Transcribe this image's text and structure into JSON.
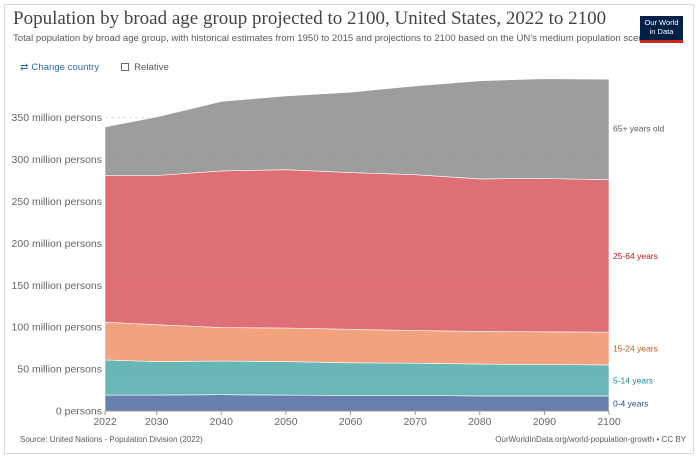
{
  "header": {
    "title": "Population by broad age group projected to 2100, United States, 2022 to 2100",
    "subtitle": "Total population by broad age group, with historical estimates from 1950 to 2015 and projections to 2100 based on the UN's medium population scenario.",
    "logo_line1": "Our World",
    "logo_line2": "in Data"
  },
  "controls": {
    "change_country": "Change country",
    "relative": "Relative",
    "relative_checked": false
  },
  "footer": {
    "source": "Source: United Nations - Population Division (2022)",
    "credit": "OurWorldInData.org/world-population-growth • CC BY"
  },
  "chart_data": {
    "type": "area",
    "stacked": true,
    "x": [
      2022,
      2030,
      2040,
      2050,
      2060,
      2070,
      2080,
      2090,
      2100
    ],
    "xticks": [
      2022,
      2030,
      2040,
      2050,
      2060,
      2070,
      2080,
      2090,
      2100
    ],
    "yticks": [
      0,
      50,
      100,
      150,
      200,
      250,
      300,
      350
    ],
    "ytick_labels": [
      "0 persons",
      "50 million persons",
      "100 million persons",
      "150 million persons",
      "200 million persons",
      "250 million persons",
      "300 million persons",
      "350 million persons"
    ],
    "ylim": [
      0,
      395
    ],
    "grid": "horizontal dashed",
    "legend": "right, inline labels",
    "series": [
      {
        "name": "0-4 years",
        "color": "#4c6a9c",
        "label_color": "#2c4f8a",
        "values": [
          19,
          19,
          19.5,
          19,
          18.5,
          18.5,
          18,
          18,
          18
        ]
      },
      {
        "name": "5-14 years",
        "color": "#4daaa9",
        "label_color": "#1a8a89",
        "values": [
          42,
          40,
          40,
          40,
          39,
          38.5,
          38,
          37.5,
          37
        ]
      },
      {
        "name": "15-24 years",
        "color": "#f09265",
        "label_color": "#c45a1f",
        "values": [
          45,
          44,
          40,
          40,
          40,
          39,
          39,
          39,
          39
        ]
      },
      {
        "name": "25-64 years",
        "color": "#d9565e",
        "label_color": "#b1182b",
        "values": [
          175,
          178,
          187,
          189,
          187,
          186,
          182,
          183,
          182
        ]
      },
      {
        "name": "65+ years old",
        "color": "#8c8c8c",
        "label_color": "#5b5b5b",
        "values": [
          58,
          70,
          83,
          88,
          96,
          106,
          117,
          119,
          120
        ]
      }
    ]
  }
}
